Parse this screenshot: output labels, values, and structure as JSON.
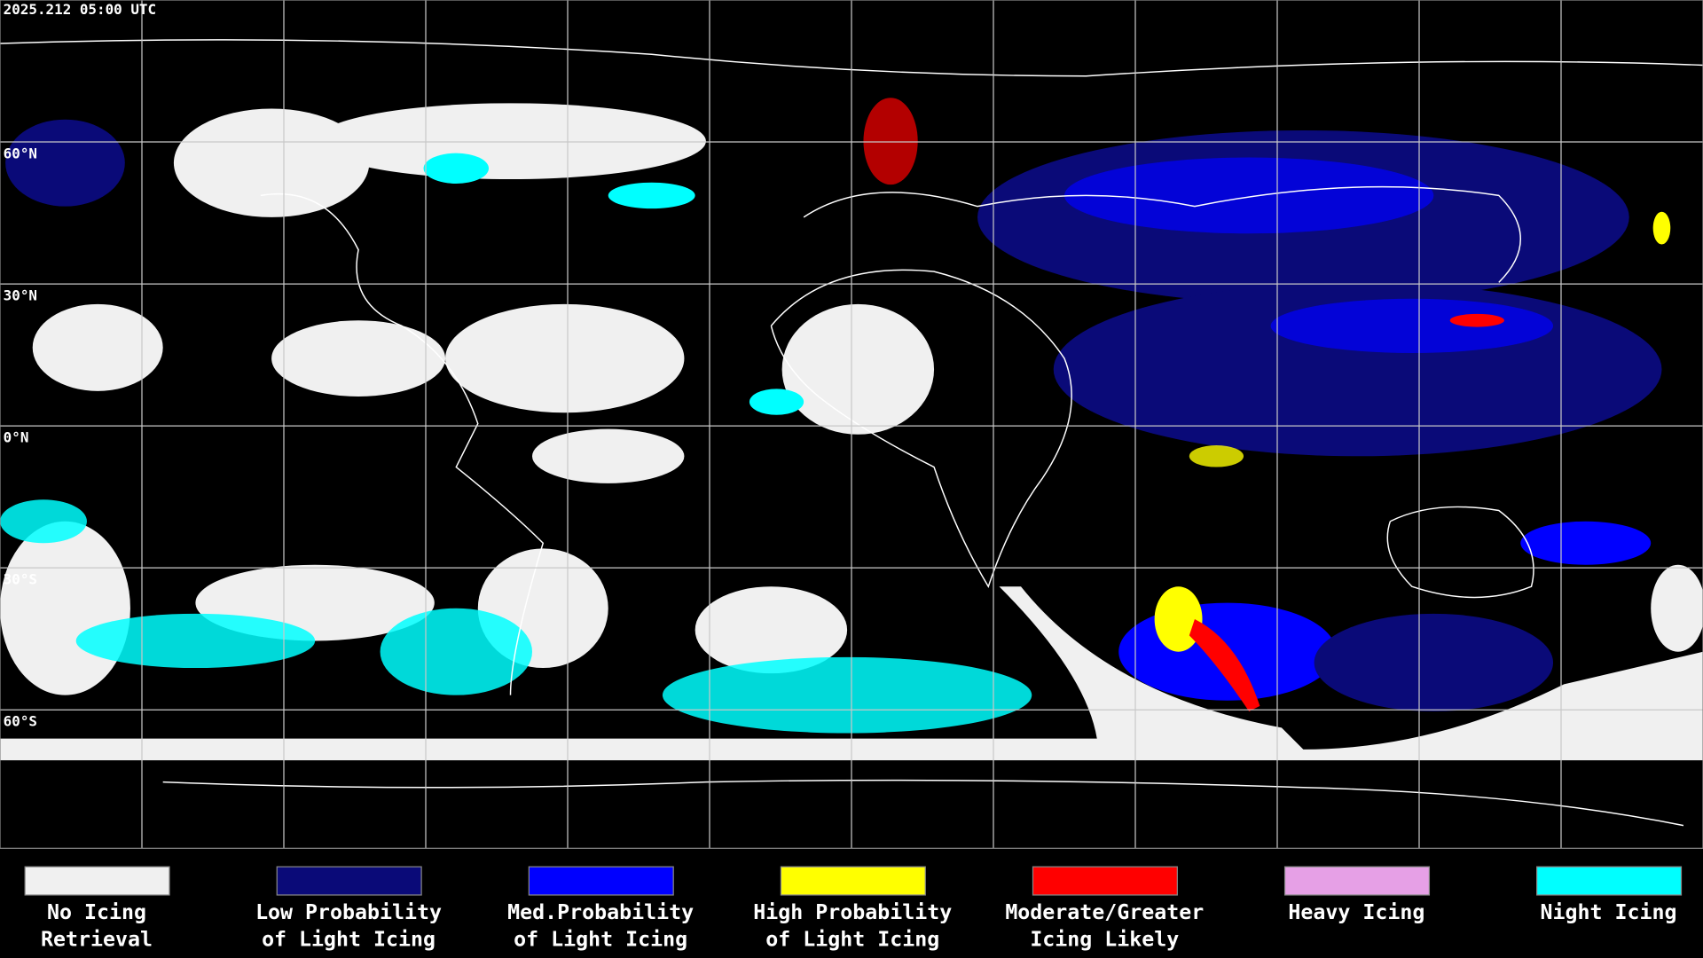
{
  "header": {
    "timestamp": "2025.212 05:00 UTC"
  },
  "map": {
    "lat_labels": [
      "60°N",
      "30°N",
      "0°N",
      "30°S",
      "60°S"
    ]
  },
  "legend": {
    "items": [
      {
        "label_lines": [
          "No Icing",
          "Retrieval"
        ],
        "color": "#f0f0f0"
      },
      {
        "label_lines": [
          "Low Probability",
          "of Light Icing"
        ],
        "color": "#0a0a78"
      },
      {
        "label_lines": [
          "Med.Probability",
          "of Light Icing"
        ],
        "color": "#0000ff"
      },
      {
        "label_lines": [
          "High Probability",
          "of Light Icing"
        ],
        "color": "#ffff00"
      },
      {
        "label_lines": [
          "Moderate/Greater",
          "Icing Likely"
        ],
        "color": "#ff0000"
      },
      {
        "label_lines": [
          "Heavy Icing"
        ],
        "color": "#e6a0e6"
      },
      {
        "label_lines": [
          "Night Icing"
        ],
        "color": "#00ffff"
      }
    ]
  }
}
